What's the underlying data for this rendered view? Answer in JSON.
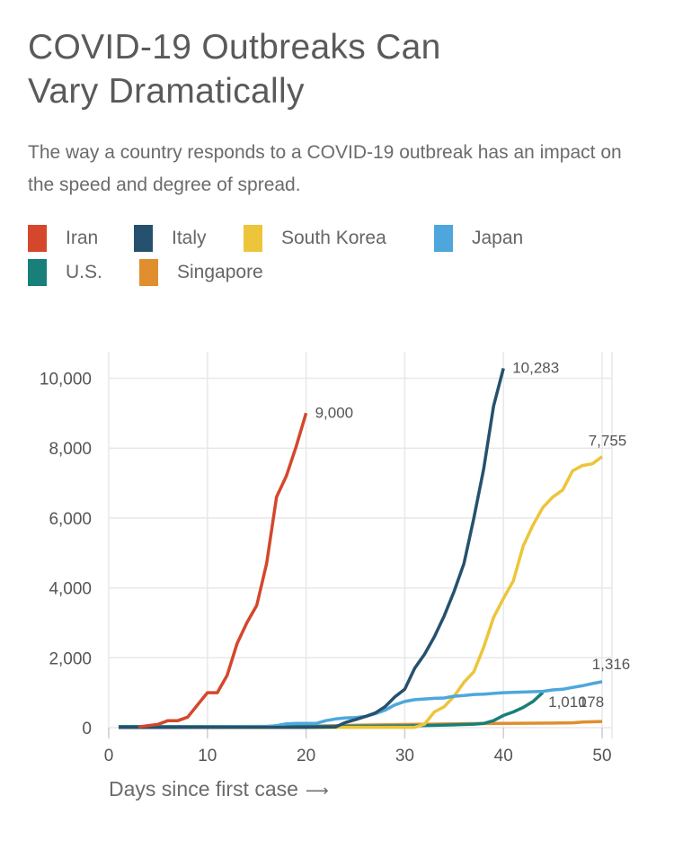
{
  "header": {
    "title_line1": "COVID-19 Outbreaks Can",
    "title_line2": "Vary Dramatically",
    "subtitle": "The way a country responds to a COVID-19 outbreak has an impact on the speed and degree of spread."
  },
  "legend": [
    {
      "name": "Iran",
      "color": "#d4472c"
    },
    {
      "name": "Italy",
      "color": "#26516e"
    },
    {
      "name": "South Korea",
      "color": "#ecc53a"
    },
    {
      "name": "Japan",
      "color": "#4ea7dc"
    },
    {
      "name": "U.S.",
      "color": "#187f7a"
    },
    {
      "name": "Singapore",
      "color": "#e18e2e"
    }
  ],
  "chart_data": {
    "type": "line",
    "title": "COVID-19 Outbreaks Can Vary Dramatically",
    "xlabel": "Days since first case",
    "xlabel_arrow": "⟶",
    "ylabel": "",
    "xlim": [
      0,
      51
    ],
    "ylim": [
      0,
      10500
    ],
    "x_ticks": [
      0,
      10,
      20,
      30,
      40,
      50
    ],
    "x_tick_labels": [
      "0",
      "10",
      "20",
      "30",
      "40",
      "50"
    ],
    "y_ticks": [
      0,
      2000,
      4000,
      6000,
      8000,
      10000
    ],
    "y_tick_labels": [
      "0",
      "2,000",
      "4,000",
      "6,000",
      "8,000",
      "10,000"
    ],
    "grid": true,
    "legend_position": "top",
    "series": [
      {
        "name": "Iran",
        "color": "#d4472c",
        "end_label": "9,000",
        "points": [
          [
            3,
            20
          ],
          [
            4,
            60
          ],
          [
            5,
            95
          ],
          [
            6,
            200
          ],
          [
            7,
            200
          ],
          [
            8,
            300
          ],
          [
            9,
            650
          ],
          [
            10,
            1000
          ],
          [
            11,
            1000
          ],
          [
            12,
            1500
          ],
          [
            13,
            2400
          ],
          [
            14,
            3000
          ],
          [
            15,
            3500
          ],
          [
            16,
            4700
          ],
          [
            17,
            6600
          ],
          [
            18,
            7200
          ],
          [
            19,
            8050
          ],
          [
            20,
            9000
          ]
        ]
      },
      {
        "name": "Italy",
        "color": "#26516e",
        "end_label": "10,283",
        "points": [
          [
            1,
            5
          ],
          [
            20,
            10
          ],
          [
            23,
            20
          ],
          [
            24,
            150
          ],
          [
            25,
            230
          ],
          [
            26,
            320
          ],
          [
            27,
            420
          ],
          [
            28,
            600
          ],
          [
            29,
            880
          ],
          [
            30,
            1100
          ],
          [
            31,
            1700
          ],
          [
            32,
            2100
          ],
          [
            33,
            2600
          ],
          [
            34,
            3200
          ],
          [
            35,
            3900
          ],
          [
            36,
            4700
          ],
          [
            37,
            6000
          ],
          [
            38,
            7400
          ],
          [
            39,
            9200
          ],
          [
            40,
            10283
          ]
        ]
      },
      {
        "name": "South Korea",
        "color": "#ecc53a",
        "end_label": "7,755",
        "points": [
          [
            1,
            5
          ],
          [
            31,
            10
          ],
          [
            32,
            100
          ],
          [
            33,
            450
          ],
          [
            34,
            600
          ],
          [
            35,
            900
          ],
          [
            36,
            1300
          ],
          [
            37,
            1600
          ],
          [
            38,
            2300
          ],
          [
            39,
            3150
          ],
          [
            40,
            3700
          ],
          [
            41,
            4200
          ],
          [
            42,
            5200
          ],
          [
            43,
            5800
          ],
          [
            44,
            6300
          ],
          [
            45,
            6600
          ],
          [
            46,
            6800
          ],
          [
            47,
            7350
          ],
          [
            48,
            7500
          ],
          [
            49,
            7550
          ],
          [
            50,
            7755
          ]
        ]
      },
      {
        "name": "Japan",
        "color": "#4ea7dc",
        "end_label": "1,316",
        "points": [
          [
            1,
            5
          ],
          [
            16,
            30
          ],
          [
            17,
            60
          ],
          [
            18,
            110
          ],
          [
            19,
            120
          ],
          [
            20,
            120
          ],
          [
            21,
            120
          ],
          [
            22,
            200
          ],
          [
            23,
            250
          ],
          [
            24,
            280
          ],
          [
            25,
            290
          ],
          [
            26,
            320
          ],
          [
            27,
            400
          ],
          [
            28,
            500
          ],
          [
            29,
            650
          ],
          [
            30,
            750
          ],
          [
            31,
            800
          ],
          [
            32,
            820
          ],
          [
            33,
            840
          ],
          [
            34,
            850
          ],
          [
            35,
            900
          ],
          [
            36,
            920
          ],
          [
            37,
            950
          ],
          [
            38,
            960
          ],
          [
            39,
            980
          ],
          [
            40,
            1000
          ],
          [
            41,
            1010
          ],
          [
            42,
            1020
          ],
          [
            43,
            1030
          ],
          [
            44,
            1040
          ],
          [
            45,
            1080
          ],
          [
            46,
            1100
          ],
          [
            47,
            1150
          ],
          [
            48,
            1200
          ],
          [
            49,
            1260
          ],
          [
            50,
            1316
          ]
        ]
      },
      {
        "name": "U.S.",
        "color": "#187f7a",
        "end_label": "1,010",
        "points": [
          [
            1,
            30
          ],
          [
            2,
            30
          ],
          [
            20,
            30
          ],
          [
            30,
            50
          ],
          [
            35,
            80
          ],
          [
            37,
            100
          ],
          [
            38,
            120
          ],
          [
            39,
            200
          ],
          [
            40,
            350
          ],
          [
            41,
            450
          ],
          [
            42,
            580
          ],
          [
            43,
            750
          ],
          [
            44,
            1010
          ]
        ]
      },
      {
        "name": "Singapore",
        "color": "#e18e2e",
        "end_label": "178",
        "points": [
          [
            3,
            18
          ],
          [
            10,
            30
          ],
          [
            20,
            40
          ],
          [
            25,
            70
          ],
          [
            30,
            90
          ],
          [
            35,
            110
          ],
          [
            40,
            120
          ],
          [
            45,
            130
          ],
          [
            47,
            140
          ],
          [
            48,
            160
          ],
          [
            50,
            178
          ]
        ]
      }
    ]
  }
}
